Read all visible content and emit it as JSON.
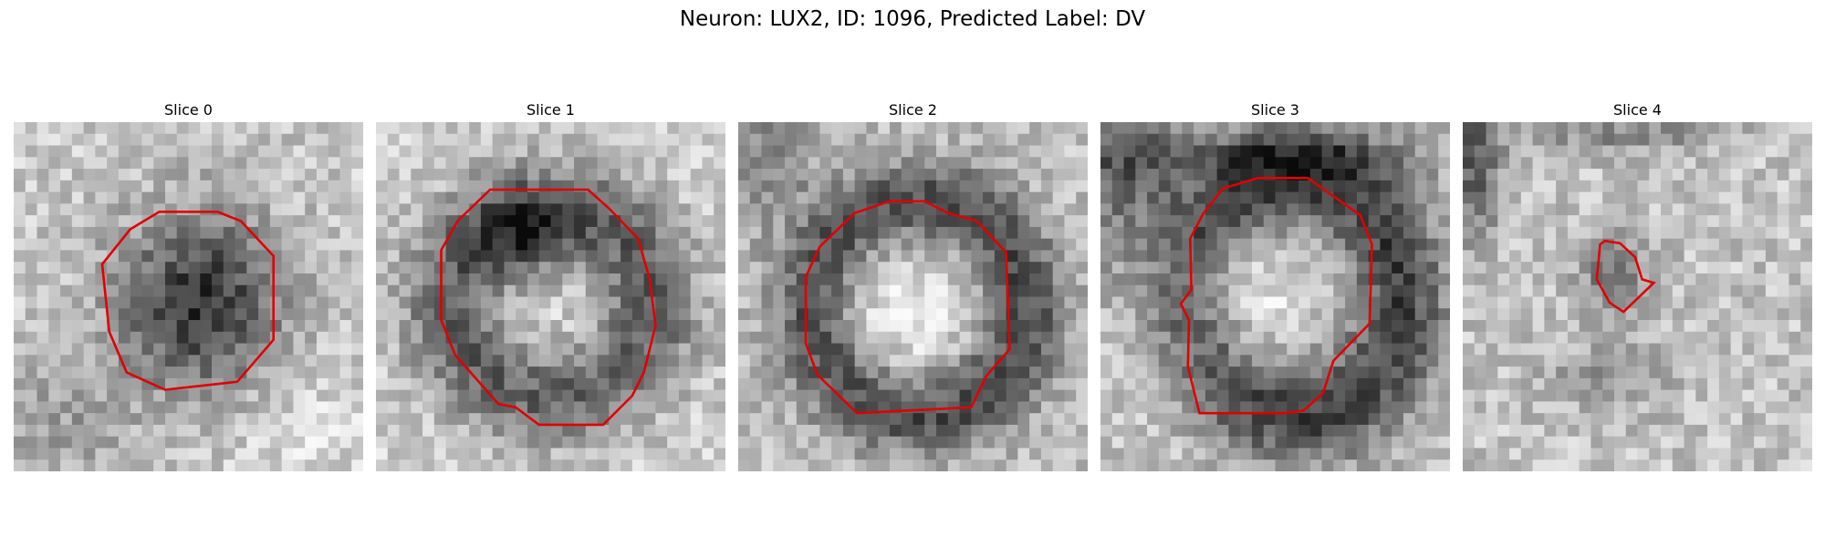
{
  "figure": {
    "title": "Neuron: LUX2, ID: 1096, Predicted Label: DV",
    "outline_color": "#e00000"
  },
  "slices": [
    {
      "title": "Slice 0",
      "description": "grayscale microscopy patch with a dark blob in the center, outlined by a red polygon"
    },
    {
      "title": "Slice 1",
      "description": "grayscale patch showing a large dark ring, outlined by a red polygon"
    },
    {
      "title": "Slice 2",
      "description": "grayscale patch showing a bright center surrounded by a dark ring, outlined by a red polygon"
    },
    {
      "title": "Slice 3",
      "description": "grayscale patch showing a bright oval with a dark rim, outlined by a red polygon"
    },
    {
      "title": "Slice 4",
      "description": "grayscale patch with a small dark spot outlined by a small red polygon"
    }
  ]
}
